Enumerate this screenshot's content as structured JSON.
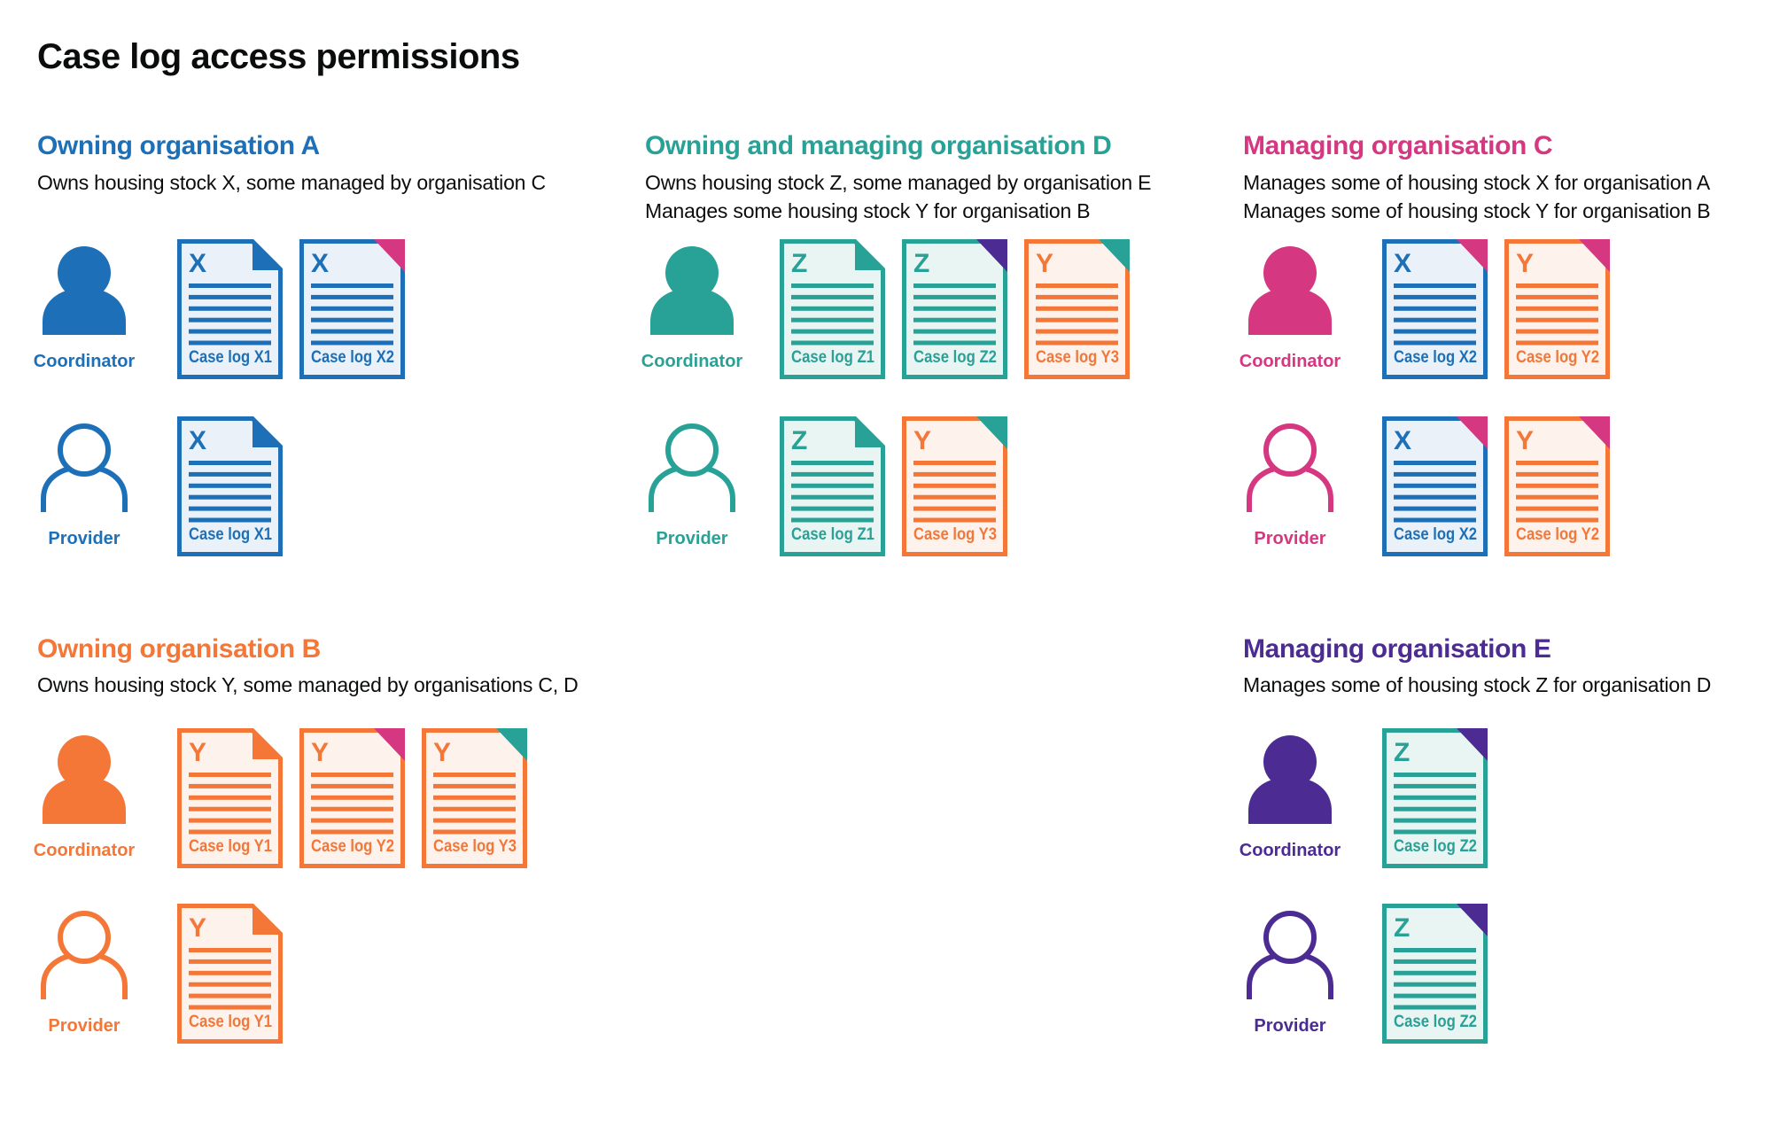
{
  "title": "Case log access permissions",
  "palette": {
    "blue": "#1d70b8",
    "teal": "#28a197",
    "orange": "#f47738",
    "pink": "#d53880",
    "purple": "#4c2c92",
    "text": "#0b0c0c"
  },
  "doc_backgrounds": {
    "blue": "#eaf1f9",
    "teal": "#e9f5f3",
    "orange": "#fdf2ec"
  },
  "sections": [
    {
      "id": "org-a",
      "heading": "Owning organisation A",
      "color": "blue",
      "column": 0,
      "band": 0,
      "description": [
        "Owns housing stock X, some managed by organisation C"
      ],
      "rows": [
        {
          "role": "Coordinator",
          "person_style": "filled",
          "docs": [
            {
              "letter": "X",
              "label": "Case log X1",
              "doc_color": "blue",
              "corner_color": "blue"
            },
            {
              "letter": "X",
              "label": "Case log X2",
              "doc_color": "blue",
              "corner_color": "pink"
            }
          ]
        },
        {
          "role": "Provider",
          "person_style": "outline",
          "docs": [
            {
              "letter": "X",
              "label": "Case log X1",
              "doc_color": "blue",
              "corner_color": "blue"
            }
          ]
        }
      ]
    },
    {
      "id": "org-d",
      "heading": "Owning and managing organisation D",
      "color": "teal",
      "column": 1,
      "band": 0,
      "description": [
        "Owns housing stock Z, some managed by organisation E",
        "Manages some housing stock Y for organisation B"
      ],
      "rows": [
        {
          "role": "Coordinator",
          "person_style": "filled",
          "docs": [
            {
              "letter": "Z",
              "label": "Case log Z1",
              "doc_color": "teal",
              "corner_color": "teal"
            },
            {
              "letter": "Z",
              "label": "Case log Z2",
              "doc_color": "teal",
              "corner_color": "purple"
            },
            {
              "letter": "Y",
              "label": "Case log Y3",
              "doc_color": "orange",
              "corner_color": "teal"
            }
          ]
        },
        {
          "role": "Provider",
          "person_style": "outline",
          "docs": [
            {
              "letter": "Z",
              "label": "Case log Z1",
              "doc_color": "teal",
              "corner_color": "teal"
            },
            {
              "letter": "Y",
              "label": "Case log Y3",
              "doc_color": "orange",
              "corner_color": "teal"
            }
          ]
        }
      ]
    },
    {
      "id": "org-c",
      "heading": "Managing organisation C",
      "color": "pink",
      "column": 2,
      "band": 0,
      "description": [
        "Manages some of housing stock X for organisation A",
        "Manages some of housing stock Y for organisation B"
      ],
      "rows": [
        {
          "role": "Coordinator",
          "person_style": "filled",
          "docs": [
            {
              "letter": "X",
              "label": "Case log X2",
              "doc_color": "blue",
              "corner_color": "pink"
            },
            {
              "letter": "Y",
              "label": "Case log Y2",
              "doc_color": "orange",
              "corner_color": "pink"
            }
          ]
        },
        {
          "role": "Provider",
          "person_style": "outline",
          "docs": [
            {
              "letter": "X",
              "label": "Case log X2",
              "doc_color": "blue",
              "corner_color": "pink"
            },
            {
              "letter": "Y",
              "label": "Case log Y2",
              "doc_color": "orange",
              "corner_color": "pink"
            }
          ]
        }
      ]
    },
    {
      "id": "org-b",
      "heading": "Owning organisation B",
      "color": "orange",
      "column": 0,
      "band": 1,
      "description": [
        "Owns housing stock Y, some managed by organisations C, D"
      ],
      "rows": [
        {
          "role": "Coordinator",
          "person_style": "filled",
          "docs": [
            {
              "letter": "Y",
              "label": "Case log Y1",
              "doc_color": "orange",
              "corner_color": "orange"
            },
            {
              "letter": "Y",
              "label": "Case log Y2",
              "doc_color": "orange",
              "corner_color": "pink"
            },
            {
              "letter": "Y",
              "label": "Case log Y3",
              "doc_color": "orange",
              "corner_color": "teal"
            }
          ]
        },
        {
          "role": "Provider",
          "person_style": "outline",
          "docs": [
            {
              "letter": "Y",
              "label": "Case log Y1",
              "doc_color": "orange",
              "corner_color": "orange"
            }
          ]
        }
      ]
    },
    {
      "id": "org-e",
      "heading": "Managing organisation E",
      "color": "purple",
      "column": 2,
      "band": 1,
      "description": [
        "Manages some of housing stock Z for organisation D"
      ],
      "rows": [
        {
          "role": "Coordinator",
          "person_style": "filled",
          "docs": [
            {
              "letter": "Z",
              "label": "Case log Z2",
              "doc_color": "teal",
              "corner_color": "purple"
            }
          ]
        },
        {
          "role": "Provider",
          "person_style": "outline",
          "docs": [
            {
              "letter": "Z",
              "label": "Case log Z2",
              "doc_color": "teal",
              "corner_color": "purple"
            }
          ]
        }
      ]
    }
  ]
}
